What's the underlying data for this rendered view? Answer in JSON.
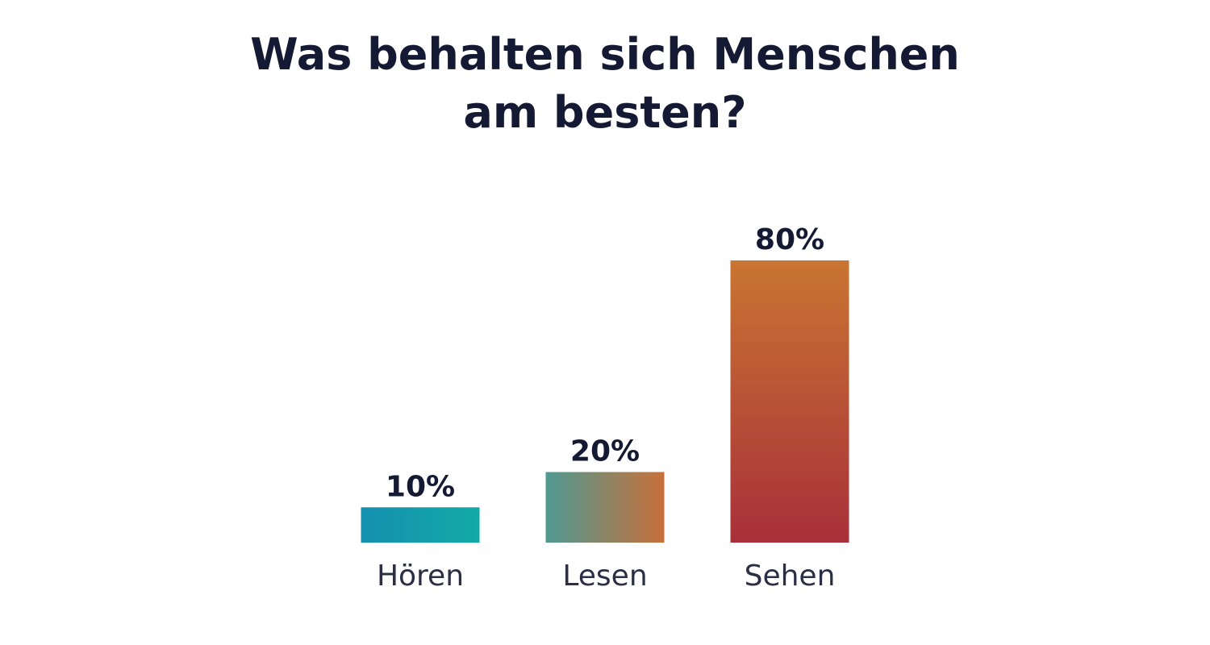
{
  "chart_data": {
    "type": "bar",
    "title_lines": [
      "Was behalten sich Menschen",
      "am besten?"
    ],
    "categories": [
      "Hören",
      "Lesen",
      "Sehen"
    ],
    "values": [
      10,
      20,
      80
    ],
    "value_labels": [
      "10%",
      "20%",
      "80%"
    ],
    "unit": "%",
    "ylim": [
      0,
      80
    ],
    "grid": false,
    "legend": "none",
    "bar_gradients": [
      [
        "#1590b0",
        "#12aaa6"
      ],
      [
        "#4f9a92",
        "#c8703a"
      ],
      [
        "#c97532",
        "#a8303a"
      ]
    ]
  }
}
